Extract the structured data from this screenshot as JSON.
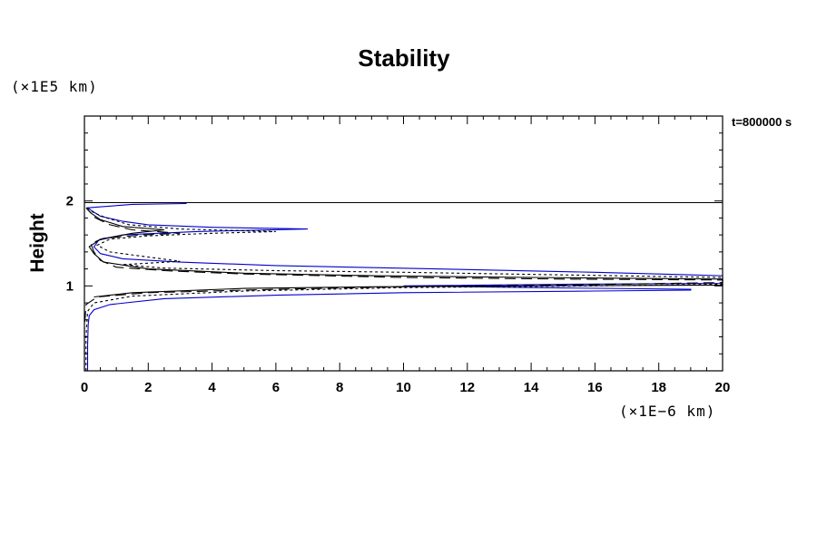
{
  "chart_data": {
    "type": "line",
    "title": "Stability",
    "xlabel": "",
    "ylabel": "Height",
    "x_scale_label": "(×1E−6 km)",
    "y_scale_label": "(×1E5 km)",
    "annotation": "t=800000 s",
    "xlim": [
      0,
      20
    ],
    "ylim": [
      0,
      3
    ],
    "xticks": [
      0,
      2,
      4,
      6,
      8,
      10,
      12,
      14,
      16,
      18,
      20
    ],
    "yticks": [
      1,
      2
    ],
    "xtick_labels": [
      "0",
      "2",
      "4",
      "6",
      "8",
      "10",
      "12",
      "14",
      "16",
      "18",
      "20"
    ],
    "ytick_labels": [
      "1",
      "2"
    ],
    "grid": false,
    "colors": {
      "blue": "#0000cc",
      "black": "#000000"
    },
    "series": [
      {
        "color": "#0000cc",
        "dash": "",
        "points": [
          [
            0.1,
            0.0
          ],
          [
            0.1,
            0.3
          ],
          [
            0.12,
            0.55
          ],
          [
            0.15,
            0.65
          ],
          [
            0.3,
            0.72
          ],
          [
            0.8,
            0.78
          ],
          [
            2.5,
            0.85
          ],
          [
            6,
            0.89
          ],
          [
            10,
            0.92
          ],
          [
            16,
            0.94
          ],
          [
            19,
            0.95
          ],
          [
            19,
            0.96
          ],
          [
            14,
            0.98
          ],
          [
            10,
            1.0
          ],
          [
            15,
            1.02
          ],
          [
            20,
            1.03
          ],
          [
            20,
            1.12
          ],
          [
            16,
            1.16
          ],
          [
            11,
            1.2
          ],
          [
            6,
            1.24
          ],
          [
            3,
            1.28
          ],
          [
            1.2,
            1.32
          ],
          [
            0.5,
            1.38
          ],
          [
            0.3,
            1.46
          ],
          [
            0.45,
            1.54
          ],
          [
            1.2,
            1.6
          ],
          [
            3.5,
            1.64
          ],
          [
            7,
            1.67
          ],
          [
            4,
            1.69
          ],
          [
            2,
            1.72
          ],
          [
            1.2,
            1.76
          ],
          [
            0.5,
            1.82
          ],
          [
            0.25,
            1.88
          ],
          [
            0.1,
            1.92
          ],
          [
            1.5,
            1.96
          ],
          [
            3.2,
            1.97
          ]
        ]
      },
      {
        "color": "#000000",
        "dash": "",
        "points": [
          [
            0,
            1.98
          ],
          [
            20,
            1.98
          ]
        ]
      },
      {
        "color": "#000000",
        "dash": "3,3",
        "points": [
          [
            0.05,
            0.0
          ],
          [
            0.05,
            0.4
          ],
          [
            0.1,
            0.7
          ],
          [
            0.3,
            0.8
          ],
          [
            1.5,
            0.88
          ],
          [
            5,
            0.94
          ],
          [
            10,
            0.98
          ],
          [
            16,
            1.0
          ],
          [
            20,
            1.02
          ],
          [
            20,
            1.1
          ],
          [
            15,
            1.13
          ],
          [
            10,
            1.16
          ],
          [
            6,
            1.18
          ],
          [
            2.5,
            1.21
          ],
          [
            1.2,
            1.25
          ],
          [
            3,
            1.29
          ],
          [
            2,
            1.34
          ],
          [
            0.8,
            1.4
          ],
          [
            0.4,
            1.48
          ],
          [
            0.8,
            1.55
          ],
          [
            2,
            1.59
          ],
          [
            4,
            1.62
          ],
          [
            6,
            1.64
          ],
          [
            3,
            1.67
          ],
          [
            1.4,
            1.72
          ],
          [
            0.7,
            1.8
          ],
          [
            0.3,
            1.86
          ],
          [
            0.05,
            1.93
          ]
        ]
      },
      {
        "color": "#000000",
        "dash": "12,6",
        "points": [
          [
            0.0,
            0.0
          ],
          [
            0.0,
            0.5
          ],
          [
            0.05,
            0.78
          ],
          [
            0.4,
            0.87
          ],
          [
            2,
            0.92
          ],
          [
            6,
            0.96
          ],
          [
            10,
            0.99
          ],
          [
            15,
            1.01
          ],
          [
            20,
            1.04
          ],
          [
            20,
            1.07
          ],
          [
            15,
            1.08
          ],
          [
            10,
            1.1
          ],
          [
            5,
            1.14
          ],
          [
            2.5,
            1.18
          ],
          [
            1,
            1.22
          ],
          [
            0.5,
            1.3
          ],
          [
            0.3,
            1.4
          ],
          [
            0.2,
            1.5
          ],
          [
            0.6,
            1.56
          ],
          [
            1.8,
            1.6
          ],
          [
            3,
            1.62
          ],
          [
            1.5,
            1.66
          ],
          [
            0.8,
            1.72
          ],
          [
            0.35,
            1.8
          ],
          [
            0.1,
            1.9
          ]
        ]
      },
      {
        "color": "#000000",
        "dash": "",
        "points": [
          [
            0.3,
            0.87
          ],
          [
            1.5,
            0.92
          ],
          [
            5,
            0.97
          ],
          [
            9,
            0.99
          ],
          [
            14,
            1.0
          ],
          [
            20,
            1.01
          ],
          [
            20,
            1.08
          ],
          [
            14,
            1.1
          ],
          [
            9,
            1.12
          ],
          [
            5,
            1.15
          ],
          [
            2,
            1.2
          ],
          [
            0.6,
            1.28
          ],
          [
            0.3,
            1.38
          ],
          [
            0.15,
            1.46
          ],
          [
            0.5,
            1.55
          ],
          [
            1.5,
            1.62
          ],
          [
            2.5,
            1.66
          ],
          [
            1.2,
            1.7
          ],
          [
            0.5,
            1.78
          ],
          [
            0.2,
            1.86
          ],
          [
            0.05,
            1.92
          ]
        ]
      }
    ]
  }
}
